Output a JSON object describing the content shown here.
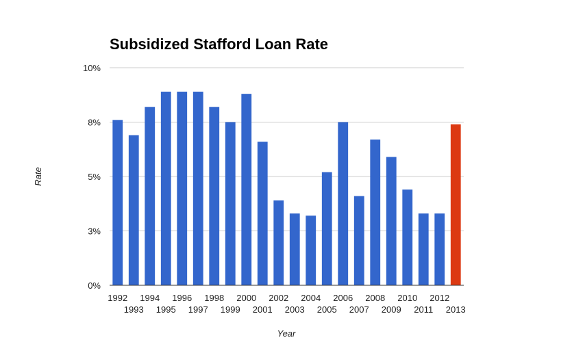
{
  "chart_data": {
    "type": "bar",
    "title": "Subsidized Stafford Loan Rate",
    "xlabel": "Year",
    "ylabel": "Rate",
    "categories": [
      "1992",
      "1993",
      "1994",
      "1995",
      "1996",
      "1997",
      "1998",
      "1999",
      "2000",
      "2001",
      "2002",
      "2003",
      "2004",
      "2005",
      "2006",
      "2007",
      "2008",
      "2009",
      "2010",
      "2011",
      "2012",
      "2013"
    ],
    "values": [
      7.6,
      6.9,
      8.2,
      8.9,
      8.9,
      8.9,
      8.2,
      7.5,
      8.8,
      6.6,
      3.9,
      3.3,
      3.2,
      5.2,
      7.5,
      4.1,
      6.7,
      5.9,
      4.4,
      3.3,
      3.3,
      7.4
    ],
    "highlight_index": 21,
    "colors": {
      "bar": "#3366cc",
      "highlight": "#dc3912",
      "grid": "#cccccc",
      "baseline": "#333333"
    },
    "ylim": [
      0,
      10
    ],
    "yticks": [
      {
        "value": 0,
        "label": "0%"
      },
      {
        "value": 2.5,
        "label": "3%"
      },
      {
        "value": 5,
        "label": "5%"
      },
      {
        "value": 7.5,
        "label": "8%"
      },
      {
        "value": 10,
        "label": "10%"
      }
    ],
    "grid": true,
    "legend": "none"
  }
}
